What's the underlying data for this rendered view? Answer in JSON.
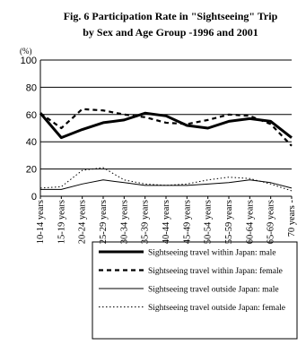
{
  "chart_data": {
    "type": "line",
    "title": "Fig. 6 Participation Rate in \"Sightseeing\" Trip",
    "subtitle": "by Sex and Age Group -1996 and 2001",
    "y_label": "(%)",
    "categories": [
      "10-14 years",
      "15-19 years",
      "20-24 years",
      "25-29 years",
      "30-34 years",
      "35-39 years",
      "40-44 years",
      "45-49 years",
      "50-54 years",
      "55-59 years",
      "60-64 years",
      "65-69 years",
      "70 years -"
    ],
    "series": [
      {
        "name": "Sightseeing travel within Japan: male",
        "color": "#000000",
        "width": 3,
        "dash": "none",
        "values": [
          61,
          43,
          49,
          54,
          56,
          61,
          59,
          52,
          50,
          55,
          57,
          55,
          43
        ]
      },
      {
        "name": "Sightseeing travel within Japan: female",
        "color": "#000000",
        "width": 2.2,
        "dash": "5,4",
        "values": [
          61,
          50,
          64,
          63,
          60,
          58,
          54,
          53,
          56,
          60,
          59,
          53,
          37
        ]
      },
      {
        "name": "Sightseeing travel outside Japan: male",
        "color": "#000000",
        "width": 1,
        "dash": "none",
        "values": [
          5,
          5,
          9,
          12,
          10,
          8,
          8,
          8,
          9,
          10,
          12,
          10,
          6
        ]
      },
      {
        "name": "Sightseeing travel outside Japan: female",
        "color": "#000000",
        "width": 1,
        "dash": "1.5,2.5",
        "values": [
          6,
          7,
          19,
          21,
          12,
          9,
          8,
          9,
          12,
          14,
          13,
          9,
          4
        ]
      }
    ],
    "ylim": [
      0,
      100
    ],
    "yticks": [
      0,
      20,
      40,
      60,
      80,
      100
    ],
    "grid": true
  }
}
